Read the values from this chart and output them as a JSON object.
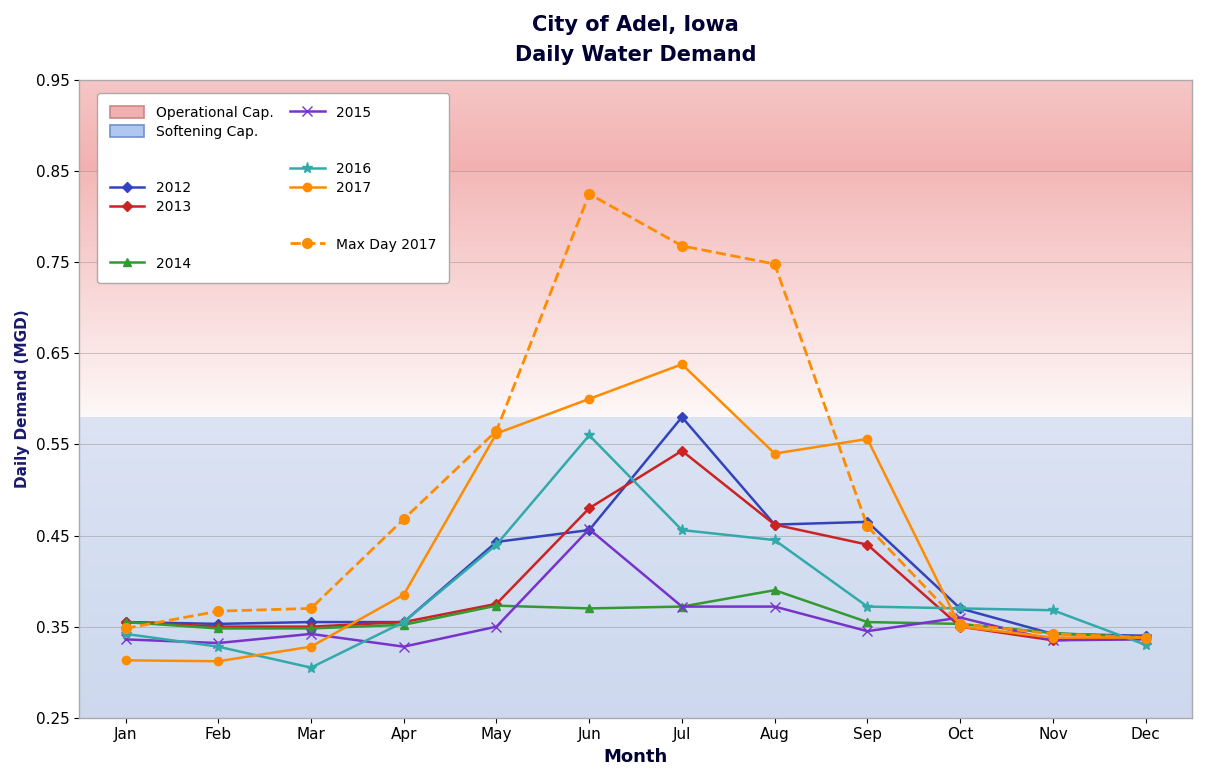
{
  "title_line1": "City of Adel, Iowa",
  "title_line2": "Daily Water Demand",
  "xlabel": "Month",
  "ylabel": "Daily Demand (MGD)",
  "months": [
    "Jan",
    "Feb",
    "Mar",
    "Apr",
    "May",
    "Jun",
    "Jul",
    "Aug",
    "Sep",
    "Oct",
    "Nov",
    "Dec"
  ],
  "ylim": [
    0.25,
    0.95
  ],
  "yticks": [
    0.25,
    0.35,
    0.45,
    0.55,
    0.65,
    0.75,
    0.85,
    0.95
  ],
  "operational_cap": 0.85,
  "softening_cap": 0.58,
  "series": {
    "2012": {
      "color": "#3344bb",
      "marker": "D",
      "markersize": 5,
      "values": [
        0.355,
        0.353,
        0.355,
        0.355,
        0.443,
        0.456,
        0.58,
        0.462,
        0.465,
        0.37,
        0.342,
        0.34
      ]
    },
    "2013": {
      "color": "#cc2222",
      "marker": "D",
      "markersize": 5,
      "values": [
        0.355,
        0.35,
        0.35,
        0.355,
        0.375,
        0.48,
        0.543,
        0.462,
        0.44,
        0.35,
        0.335,
        0.338
      ]
    },
    "2014": {
      "color": "#339933",
      "marker": "^",
      "markersize": 6,
      "values": [
        0.355,
        0.348,
        0.348,
        0.352,
        0.373,
        0.37,
        0.372,
        0.39,
        0.355,
        0.353,
        0.343,
        0.338
      ]
    },
    "2015": {
      "color": "#7733cc",
      "marker": "x",
      "markersize": 7,
      "values": [
        0.336,
        0.332,
        0.342,
        0.328,
        0.35,
        0.457,
        0.372,
        0.372,
        0.345,
        0.36,
        0.335,
        0.336
      ]
    },
    "2016": {
      "color": "#33aaaa",
      "marker": "*",
      "markersize": 8,
      "values": [
        0.342,
        0.328,
        0.305,
        0.355,
        0.44,
        0.56,
        0.456,
        0.445,
        0.372,
        0.37,
        0.368,
        0.33
      ]
    },
    "2017": {
      "color": "#ff8c00",
      "marker": "o",
      "markersize": 6,
      "values": [
        0.313,
        0.312,
        0.328,
        0.385,
        0.562,
        0.6,
        0.638,
        0.54,
        0.556,
        0.35,
        0.338,
        0.338
      ]
    }
  },
  "max_day_2017": {
    "color": "#ff8c00",
    "values": [
      0.348,
      0.367,
      0.37,
      0.468,
      0.565,
      0.825,
      0.768,
      0.748,
      0.46,
      0.353,
      0.342,
      0.338
    ]
  },
  "background_color": "#ffffff"
}
